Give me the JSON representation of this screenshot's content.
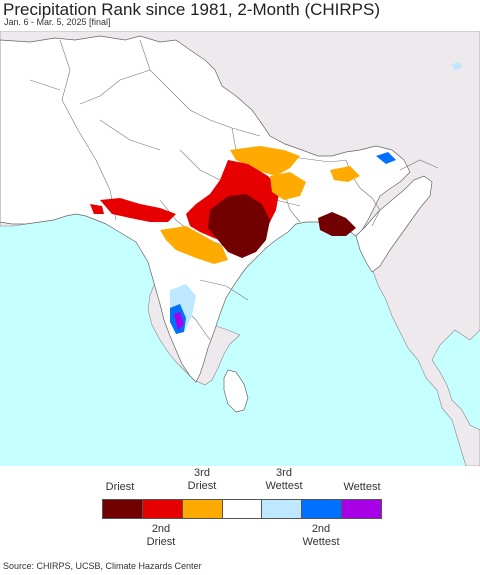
{
  "header": {
    "title": "Precipitation Rank since 1981, 2-Month (CHIRPS)",
    "subtitle": "Jan. 6 - Mar. 5, 2025 [final]"
  },
  "map": {
    "colors": {
      "ocean": "#c6ffff",
      "land_in_region": "#ffffff",
      "land_outside": "#ede9ed",
      "borders": "#777777"
    }
  },
  "legend": {
    "top_labels": [
      "Driest",
      "3rd Driest",
      "3rd Wettest",
      "Wettest"
    ],
    "bottom_labels": [
      "2nd Driest",
      "2nd Wettest"
    ],
    "colors": [
      "#730000",
      "#e60000",
      "#ffaa00",
      "#ffffff",
      "#bee8ff",
      "#0070ff",
      "#a800e6"
    ]
  },
  "footer": {
    "source": "Source: CHIRPS, UCSB, Climate Hazards Center"
  }
}
